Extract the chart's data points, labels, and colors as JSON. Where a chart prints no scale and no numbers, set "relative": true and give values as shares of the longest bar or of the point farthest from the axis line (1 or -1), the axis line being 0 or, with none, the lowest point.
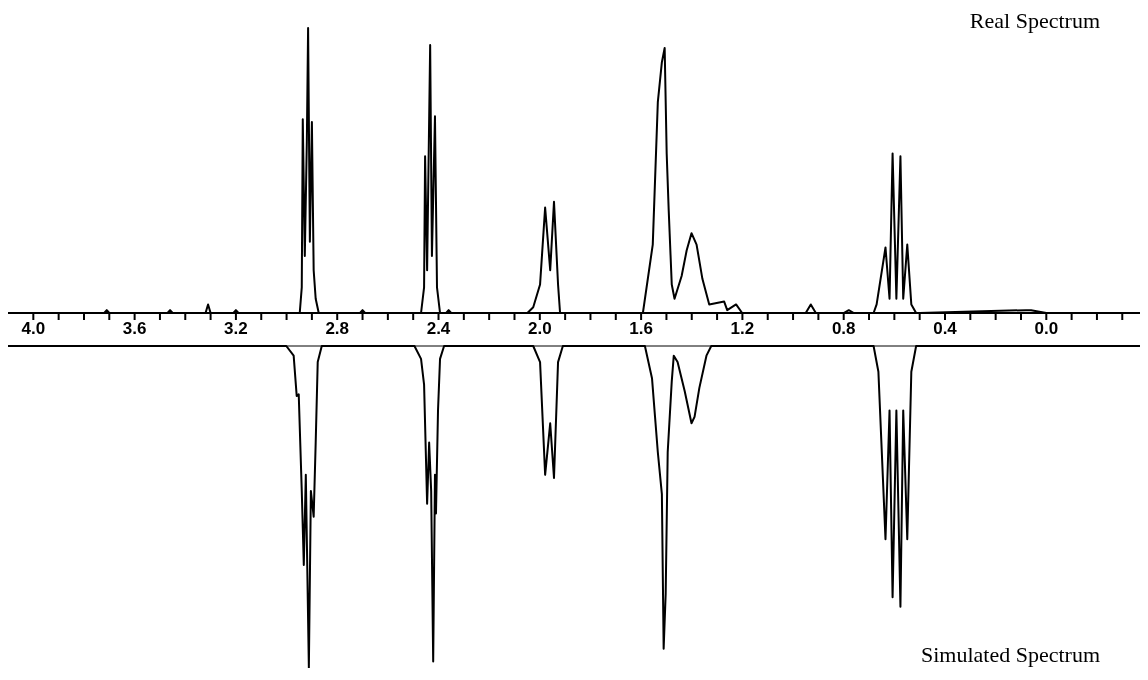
{
  "chart_data": [
    {
      "type": "line",
      "title": "Real Spectrum",
      "relative": true,
      "color": "#000000",
      "xlim": [
        4.1,
        -0.37
      ],
      "xticks": [
        {
          "value": 4.0,
          "label": "4.0"
        },
        {
          "value": 3.9,
          "label": null
        },
        {
          "value": 3.8,
          "label": null
        },
        {
          "value": 3.7,
          "label": null
        },
        3.6,
        {
          "value": 3.5,
          "label": null
        },
        {
          "value": 3.4,
          "label": null
        },
        {
          "value": 3.3,
          "label": null
        },
        3.2,
        {
          "value": 3.1,
          "label": null
        },
        {
          "value": 3.0,
          "label": null
        },
        {
          "value": 2.9,
          "label": null
        },
        2.8,
        {
          "value": 2.7,
          "label": null
        },
        {
          "value": 2.6,
          "label": null
        },
        {
          "value": 2.5,
          "label": null
        },
        2.4,
        {
          "value": 2.3,
          "label": null
        },
        {
          "value": 2.2,
          "label": null
        },
        {
          "value": 2.1,
          "label": null
        },
        {
          "value": 2.0,
          "label": "2.0"
        },
        {
          "value": 1.9,
          "label": null
        },
        {
          "value": 1.8,
          "label": null
        },
        {
          "value": 1.7,
          "label": null
        },
        1.6,
        {
          "value": 1.5,
          "label": null
        },
        {
          "value": 1.4,
          "label": null
        },
        {
          "value": 1.3,
          "label": null
        },
        1.2,
        {
          "value": 1.1,
          "label": null
        },
        {
          "value": 1.0,
          "label": null
        },
        {
          "value": 0.9,
          "label": null
        },
        0.8,
        {
          "value": 0.7,
          "label": null
        },
        {
          "value": 0.6,
          "label": null
        },
        {
          "value": 0.5,
          "label": null
        },
        0.4,
        {
          "value": 0.3,
          "label": null
        },
        {
          "value": 0.2,
          "label": null
        },
        {
          "value": 0.1,
          "label": null
        },
        {
          "value": 0.0,
          "label": "0.0"
        },
        {
          "value": -0.1,
          "label": null
        },
        {
          "value": -0.2,
          "label": null
        },
        {
          "value": -0.3,
          "label": null
        }
      ],
      "x": [
        4.1,
        3.72,
        3.71,
        3.7,
        3.47,
        3.46,
        3.45,
        3.32,
        3.31,
        3.3,
        3.21,
        3.2,
        3.19,
        2.96,
        2.948,
        2.94,
        2.936,
        2.928,
        2.92,
        2.915,
        2.908,
        2.9,
        2.893,
        2.885,
        2.873,
        2.86,
        2.71,
        2.7,
        2.69,
        2.48,
        2.469,
        2.457,
        2.453,
        2.445,
        2.433,
        2.426,
        2.414,
        2.406,
        2.394,
        2.37,
        2.36,
        2.35,
        2.049,
        2.026,
        1.999,
        1.979,
        1.959,
        1.944,
        1.928,
        1.92,
        1.593,
        1.554,
        1.534,
        1.518,
        1.507,
        1.499,
        1.491,
        1.479,
        1.468,
        1.44,
        1.42,
        1.401,
        1.381,
        1.358,
        1.331,
        1.272,
        1.26,
        1.225,
        1.201,
        0.95,
        0.93,
        0.91,
        0.8,
        0.78,
        0.76,
        0.682,
        0.67,
        0.635,
        0.619,
        0.607,
        0.592,
        0.576,
        0.565,
        0.549,
        0.533,
        0.514,
        0.5,
        0.08,
        0.06,
        0.0,
        -0.37
      ],
      "values": [
        0,
        0,
        0.01,
        0,
        0,
        0.01,
        0,
        0,
        0.03,
        0,
        0,
        0.01,
        0,
        0,
        0,
        0.09,
        0.68,
        0.2,
        0.6,
        1.0,
        0.25,
        0.67,
        0.15,
        0.05,
        0,
        0,
        0,
        0.01,
        0,
        0,
        0,
        0.09,
        0.55,
        0.15,
        0.94,
        0.2,
        0.69,
        0.09,
        0,
        0,
        0.01,
        0,
        0,
        0.02,
        0.1,
        0.37,
        0.15,
        0.39,
        0.1,
        0,
        0,
        0.24,
        0.74,
        0.88,
        0.93,
        0.56,
        0.36,
        0.1,
        0.05,
        0.13,
        0.22,
        0.28,
        0.24,
        0.12,
        0.03,
        0.04,
        0.01,
        0.03,
        0,
        0,
        0.03,
        0,
        0,
        0.01,
        0,
        0,
        0.03,
        0.23,
        0.05,
        0.56,
        0.05,
        0.55,
        0.05,
        0.24,
        0.03,
        0,
        0,
        0.01,
        0.01,
        0,
        0
      ]
    },
    {
      "type": "line",
      "title": "Simulated Spectrum",
      "relative": true,
      "color": "#000000",
      "xlim": [
        4.1,
        -0.37
      ],
      "tick_labels": false,
      "x": [
        4.1,
        3.001,
        2.972,
        2.96,
        2.952,
        2.94,
        2.932,
        2.924,
        2.912,
        2.904,
        2.893,
        2.885,
        2.877,
        2.861,
        2.495,
        2.469,
        2.457,
        2.445,
        2.437,
        2.429,
        2.421,
        2.414,
        2.41,
        2.402,
        2.394,
        2.378,
        2.026,
        1.999,
        1.979,
        1.959,
        1.944,
        1.928,
        1.909,
        1.585,
        1.557,
        1.545,
        1.534,
        1.518,
        1.511,
        1.503,
        1.495,
        1.479,
        1.471,
        1.456,
        1.428,
        1.401,
        1.389,
        1.37,
        1.342,
        1.323,
        0.682,
        0.663,
        0.635,
        0.619,
        0.607,
        0.592,
        0.576,
        0.565,
        0.549,
        0.533,
        0.514,
        -0.37
      ],
      "values": [
        0,
        0,
        -0.03,
        -0.155,
        -0.15,
        -0.45,
        -0.68,
        -0.4,
        -1.0,
        -0.45,
        -0.53,
        -0.3,
        -0.05,
        0,
        0,
        -0.04,
        -0.12,
        -0.49,
        -0.3,
        -0.45,
        -0.98,
        -0.4,
        -0.52,
        -0.2,
        -0.04,
        0,
        0,
        -0.05,
        -0.4,
        -0.24,
        -0.41,
        -0.05,
        0,
        0,
        -0.1,
        -0.22,
        -0.33,
        -0.46,
        -0.94,
        -0.77,
        -0.33,
        -0.11,
        -0.03,
        -0.05,
        -0.14,
        -0.24,
        -0.22,
        -0.13,
        -0.03,
        0,
        0,
        -0.08,
        -0.6,
        -0.2,
        -0.78,
        -0.2,
        -0.81,
        -0.2,
        -0.6,
        -0.08,
        0,
        0
      ]
    }
  ]
}
